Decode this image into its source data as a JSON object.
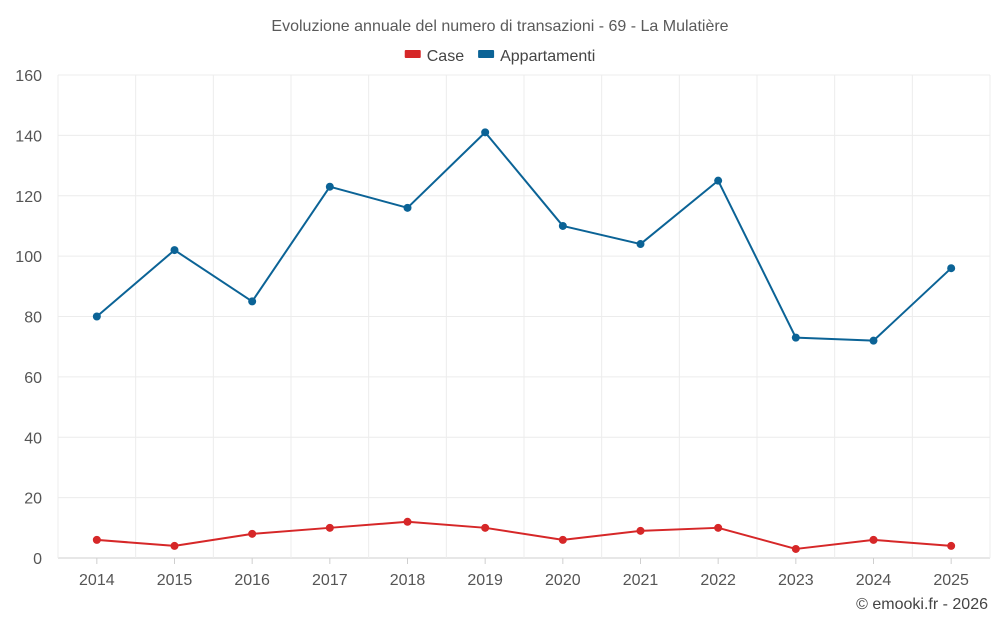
{
  "chart_data": {
    "type": "line",
    "title": "Evoluzione annuale del numero di transazioni - 69 - La Mulatière",
    "categories": [
      "2014",
      "2015",
      "2016",
      "2017",
      "2018",
      "2019",
      "2020",
      "2021",
      "2022",
      "2023",
      "2024",
      "2025"
    ],
    "series": [
      {
        "name": "Case",
        "color": "#d62728",
        "values": [
          6,
          4,
          8,
          10,
          12,
          10,
          6,
          9,
          10,
          3,
          6,
          4
        ]
      },
      {
        "name": "Appartamenti",
        "color": "#0b6396",
        "values": [
          80,
          102,
          85,
          123,
          116,
          141,
          110,
          104,
          125,
          73,
          72,
          96
        ]
      }
    ],
    "ylim": [
      0,
      160
    ],
    "yticks": [
      0,
      20,
      40,
      60,
      80,
      100,
      120,
      140,
      160
    ],
    "xlabel": "",
    "ylabel": "",
    "grid": true,
    "legend_position": "top-center"
  },
  "credit": "© emooki.fr - 2026"
}
